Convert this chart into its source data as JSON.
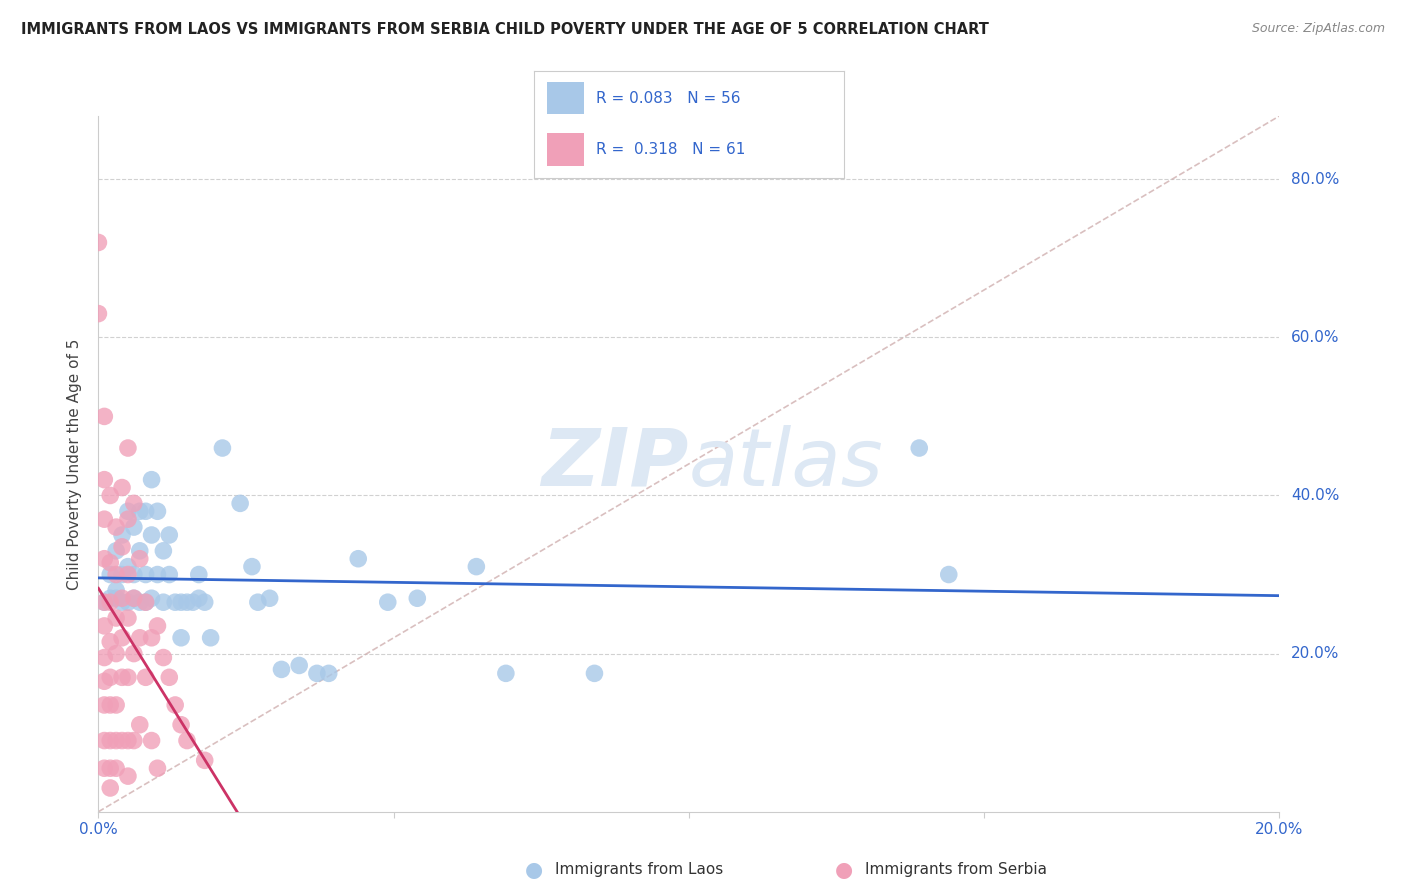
{
  "title": "IMMIGRANTS FROM LAOS VS IMMIGRANTS FROM SERBIA CHILD POVERTY UNDER THE AGE OF 5 CORRELATION CHART",
  "source": "Source: ZipAtlas.com",
  "ylabel": "Child Poverty Under the Age of 5",
  "xlim": [
    0.0,
    0.2
  ],
  "ylim": [
    0.0,
    0.88
  ],
  "x_ticks": [
    0.0,
    0.05,
    0.1,
    0.15,
    0.2
  ],
  "y_ticks": [
    0.0,
    0.2,
    0.4,
    0.6,
    0.8
  ],
  "grid_color": "#cccccc",
  "background_color": "#ffffff",
  "watermark_zip": "ZIP",
  "watermark_atlas": "atlas",
  "laos_color": "#a8c8e8",
  "serbia_color": "#f0a0b8",
  "laos_R": 0.083,
  "laos_N": 56,
  "serbia_R": 0.318,
  "serbia_N": 61,
  "laos_trend_color": "#3366cc",
  "serbia_trend_color": "#cc3366",
  "diagonal_color": "#d0b0b0",
  "laos_scatter": [
    [
      0.001,
      0.265
    ],
    [
      0.002,
      0.27
    ],
    [
      0.002,
      0.3
    ],
    [
      0.003,
      0.28
    ],
    [
      0.003,
      0.33
    ],
    [
      0.003,
      0.27
    ],
    [
      0.004,
      0.35
    ],
    [
      0.004,
      0.3
    ],
    [
      0.004,
      0.265
    ],
    [
      0.005,
      0.31
    ],
    [
      0.005,
      0.265
    ],
    [
      0.005,
      0.38
    ],
    [
      0.006,
      0.36
    ],
    [
      0.006,
      0.3
    ],
    [
      0.006,
      0.27
    ],
    [
      0.007,
      0.38
    ],
    [
      0.007,
      0.33
    ],
    [
      0.007,
      0.265
    ],
    [
      0.008,
      0.265
    ],
    [
      0.008,
      0.38
    ],
    [
      0.008,
      0.3
    ],
    [
      0.009,
      0.42
    ],
    [
      0.009,
      0.35
    ],
    [
      0.009,
      0.27
    ],
    [
      0.01,
      0.3
    ],
    [
      0.01,
      0.38
    ],
    [
      0.011,
      0.33
    ],
    [
      0.011,
      0.265
    ],
    [
      0.012,
      0.3
    ],
    [
      0.012,
      0.35
    ],
    [
      0.013,
      0.265
    ],
    [
      0.014,
      0.22
    ],
    [
      0.014,
      0.265
    ],
    [
      0.015,
      0.265
    ],
    [
      0.016,
      0.265
    ],
    [
      0.017,
      0.27
    ],
    [
      0.017,
      0.3
    ],
    [
      0.018,
      0.265
    ],
    [
      0.019,
      0.22
    ],
    [
      0.021,
      0.46
    ],
    [
      0.024,
      0.39
    ],
    [
      0.026,
      0.31
    ],
    [
      0.027,
      0.265
    ],
    [
      0.029,
      0.27
    ],
    [
      0.031,
      0.18
    ],
    [
      0.034,
      0.185
    ],
    [
      0.037,
      0.175
    ],
    [
      0.039,
      0.175
    ],
    [
      0.044,
      0.32
    ],
    [
      0.049,
      0.265
    ],
    [
      0.054,
      0.27
    ],
    [
      0.064,
      0.31
    ],
    [
      0.069,
      0.175
    ],
    [
      0.084,
      0.175
    ],
    [
      0.139,
      0.46
    ],
    [
      0.144,
      0.3
    ]
  ],
  "serbia_scatter": [
    [
      0.0,
      0.72
    ],
    [
      0.0,
      0.63
    ],
    [
      0.001,
      0.5
    ],
    [
      0.001,
      0.42
    ],
    [
      0.001,
      0.37
    ],
    [
      0.001,
      0.32
    ],
    [
      0.001,
      0.265
    ],
    [
      0.001,
      0.235
    ],
    [
      0.001,
      0.195
    ],
    [
      0.001,
      0.165
    ],
    [
      0.001,
      0.135
    ],
    [
      0.001,
      0.09
    ],
    [
      0.001,
      0.055
    ],
    [
      0.002,
      0.4
    ],
    [
      0.002,
      0.315
    ],
    [
      0.002,
      0.265
    ],
    [
      0.002,
      0.215
    ],
    [
      0.002,
      0.17
    ],
    [
      0.002,
      0.135
    ],
    [
      0.002,
      0.09
    ],
    [
      0.002,
      0.055
    ],
    [
      0.002,
      0.03
    ],
    [
      0.003,
      0.36
    ],
    [
      0.003,
      0.3
    ],
    [
      0.003,
      0.245
    ],
    [
      0.003,
      0.2
    ],
    [
      0.003,
      0.135
    ],
    [
      0.003,
      0.09
    ],
    [
      0.003,
      0.055
    ],
    [
      0.004,
      0.41
    ],
    [
      0.004,
      0.335
    ],
    [
      0.004,
      0.27
    ],
    [
      0.004,
      0.22
    ],
    [
      0.004,
      0.17
    ],
    [
      0.004,
      0.09
    ],
    [
      0.005,
      0.46
    ],
    [
      0.005,
      0.37
    ],
    [
      0.005,
      0.3
    ],
    [
      0.005,
      0.245
    ],
    [
      0.005,
      0.17
    ],
    [
      0.005,
      0.09
    ],
    [
      0.005,
      0.045
    ],
    [
      0.006,
      0.39
    ],
    [
      0.006,
      0.27
    ],
    [
      0.006,
      0.2
    ],
    [
      0.006,
      0.09
    ],
    [
      0.007,
      0.32
    ],
    [
      0.007,
      0.22
    ],
    [
      0.007,
      0.11
    ],
    [
      0.008,
      0.265
    ],
    [
      0.008,
      0.17
    ],
    [
      0.009,
      0.22
    ],
    [
      0.009,
      0.09
    ],
    [
      0.01,
      0.235
    ],
    [
      0.01,
      0.055
    ],
    [
      0.011,
      0.195
    ],
    [
      0.012,
      0.17
    ],
    [
      0.013,
      0.135
    ],
    [
      0.014,
      0.11
    ],
    [
      0.015,
      0.09
    ],
    [
      0.018,
      0.065
    ]
  ]
}
